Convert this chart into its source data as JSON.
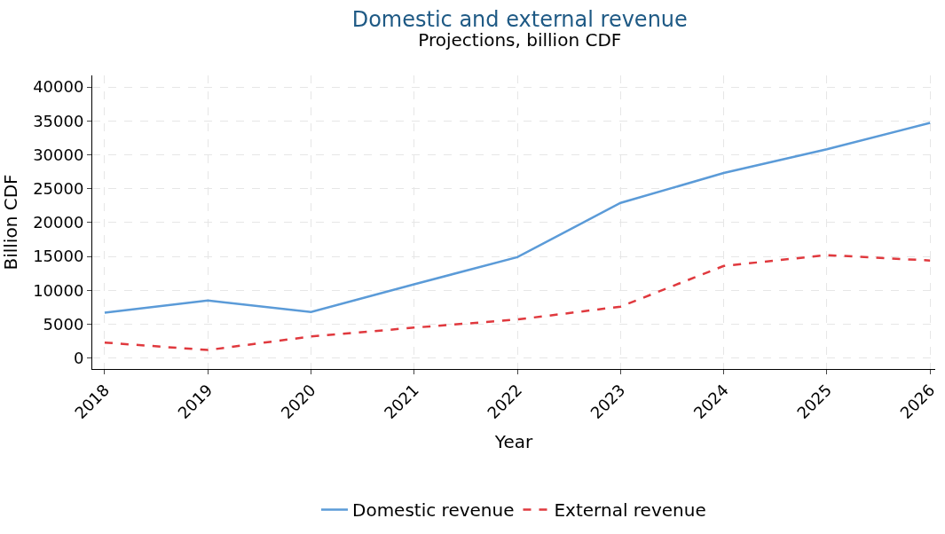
{
  "chart_data": {
    "type": "line",
    "title": "Domestic and external revenue",
    "subtitle": "Projections, billion CDF",
    "xlabel": "Year",
    "ylabel": "Billion CDF",
    "x": [
      2018,
      2019,
      2020,
      2021,
      2022,
      2023,
      2024,
      2025,
      2026
    ],
    "series": [
      {
        "name": "Domestic revenue",
        "color": "#5b9bd8",
        "line_style": "solid",
        "values": [
          6700,
          8500,
          6800,
          10900,
          14900,
          22900,
          27300,
          30800,
          34700
        ]
      },
      {
        "name": "External revenue",
        "color": "#e0393e",
        "line_style": "dashed",
        "values": [
          2300,
          1200,
          3200,
          4500,
          5700,
          7600,
          13600,
          15200,
          14400
        ]
      }
    ],
    "xlim": [
      2017.88,
      2026.05
    ],
    "xticks": [
      2018,
      2019,
      2020,
      2021,
      2022,
      2023,
      2024,
      2025,
      2026
    ],
    "ylim": [
      -1600,
      41700
    ],
    "yticks": [
      0,
      5000,
      10000,
      15000,
      20000,
      25000,
      30000,
      35000,
      40000
    ],
    "grid": true,
    "legend": "bottom",
    "marker": "none"
  }
}
